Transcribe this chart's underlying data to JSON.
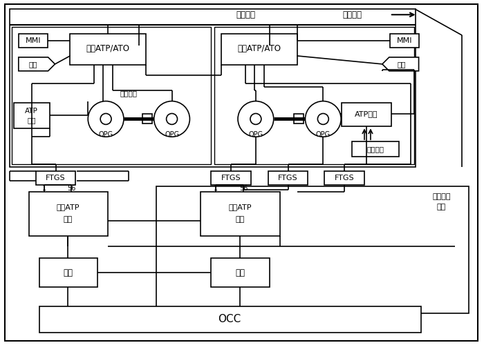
{
  "bg_color": "#ffffff",
  "title_train_bus": "列车总线",
  "title_direction": "运行方向",
  "label_mmi": "MMI",
  "label_atp_ato": "车载ATP/ATO",
  "label_jiekou": "接口",
  "label_atp_ant_left": "ATP\n天线",
  "label_atp_ant_right": "ATP天线",
  "label_opg": "OPG",
  "label_anquan": "安全制动",
  "label_ftgs": "FTGS",
  "label_track_atp": "轨旁ATP\n单元",
  "label_lianxiao": "联锁",
  "label_occ": "OCC",
  "label_tongbu": "同步环线",
  "label_shishebei": "室内设备",
  "label_zongxian": "总线",
  "label_1": "1",
  "label_56": "56",
  "fig_width": 7.0,
  "fig_height": 5.0
}
